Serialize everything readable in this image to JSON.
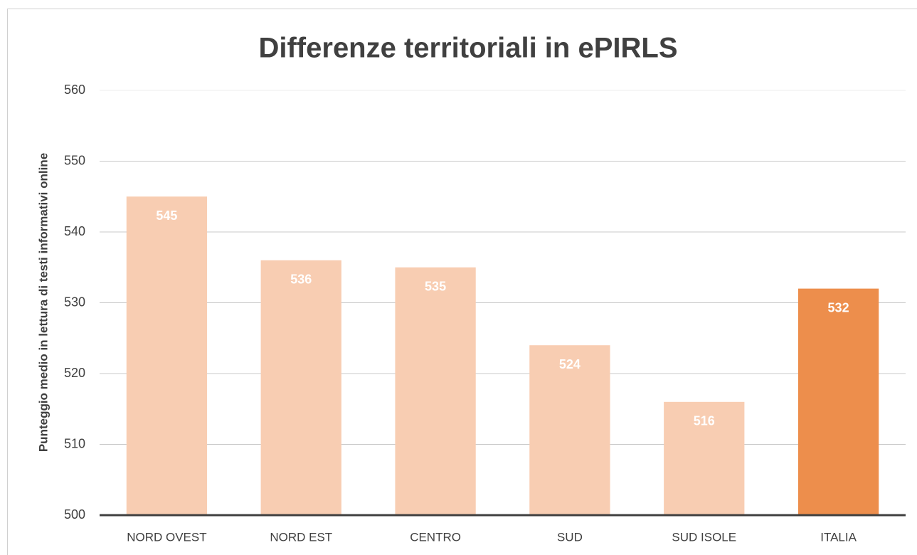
{
  "chart_data": {
    "type": "bar",
    "title": "Differenze territoriali in ePIRLS",
    "ylabel": "Punteggio medio in lettura di testi informativi online",
    "categories": [
      "NORD OVEST",
      "NORD EST",
      "CENTRO",
      "SUD",
      "SUD ISOLE",
      "ITALIA"
    ],
    "values": [
      545,
      536,
      535,
      524,
      516,
      532
    ],
    "colors": [
      "#f8cdb2",
      "#f8cdb2",
      "#f8cdb2",
      "#f8cdb2",
      "#f8cdb2",
      "#ed8e4c"
    ],
    "ylim": [
      500,
      560
    ],
    "yticks": [
      500,
      510,
      520,
      530,
      540,
      550,
      560
    ],
    "grid": true
  }
}
